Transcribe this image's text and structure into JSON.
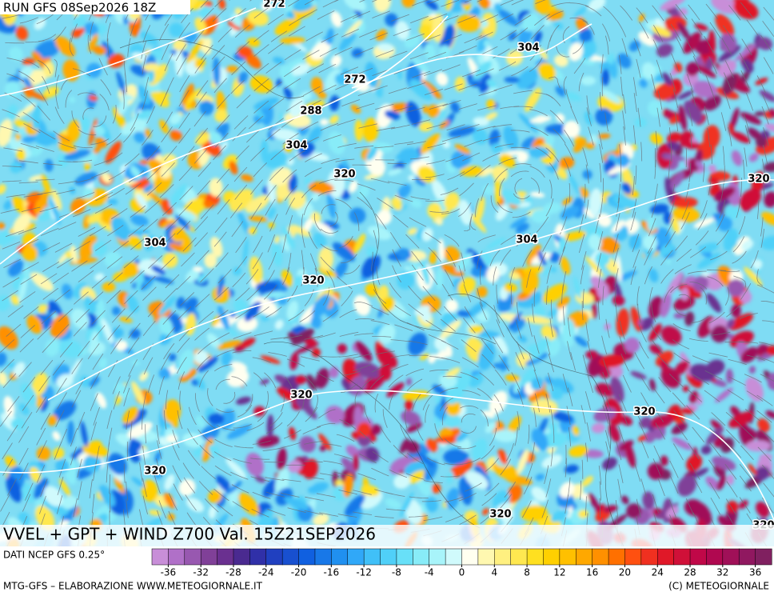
{
  "header": {
    "run": "RUN GFS 08Sep2026 18Z"
  },
  "map": {
    "title": "VVEL + GPT + WIND Z700 Val. 15Z21SEP2026",
    "contour_labels": [
      272,
      304,
      272,
      288,
      304,
      320,
      320,
      304,
      304,
      320,
      320,
      320,
      320,
      320,
      320
    ]
  },
  "colorbar": {
    "clim": [
      -38,
      38
    ],
    "ticks": [
      -36,
      -32,
      -28,
      -24,
      -20,
      -16,
      -12,
      -8,
      -4,
      0,
      4,
      8,
      12,
      16,
      20,
      24,
      28,
      32,
      36
    ],
    "colors": [
      "#c88ed8",
      "#b070c8",
      "#9858b0",
      "#804098",
      "#6a3090",
      "#4a2a90",
      "#3030a8",
      "#2040c0",
      "#1850d0",
      "#1060e0",
      "#1878e8",
      "#2090f0",
      "#30a8f8",
      "#40c0f8",
      "#50d0f8",
      "#68e0f8",
      "#88ecf8",
      "#a8f4fa",
      "#d0fafc",
      "#fffff0",
      "#fff8b0",
      "#fff080",
      "#ffe850",
      "#ffe020",
      "#ffd000",
      "#ffc000",
      "#ffa800",
      "#ff9000",
      "#ff7000",
      "#ff5010",
      "#f03020",
      "#e01828",
      "#d01038",
      "#c00848",
      "#b00850",
      "#a01058",
      "#901860",
      "#802060"
    ]
  },
  "footer": {
    "source": "DATI NCEP GFS 0.25°",
    "credit": "MTG-GFS – ELABORAZIONE WWW.METEOGIORNALE.IT",
    "copyright": "(C) METEOGIORNALE"
  }
}
